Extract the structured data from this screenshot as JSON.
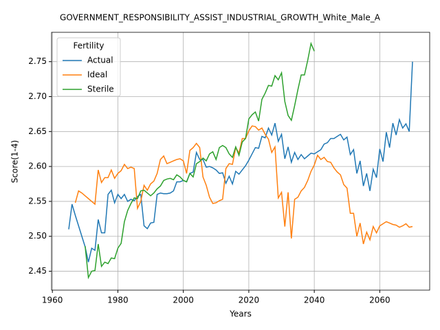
{
  "chart_data": {
    "type": "line",
    "title": "GOVERNMENT_RESPONSIBILITY_ASSIST_INDUSTRIAL_GROWTH_White_Male_A",
    "xlabel": "Years",
    "ylabel": "Score(1-4)",
    "legend_title": "Fertility",
    "legend": "upper left",
    "grid": true,
    "xlim": [
      1959.75,
      2075.25
    ],
    "ylim": [
      2.423,
      2.792
    ],
    "xticks": [
      1960,
      1980,
      2000,
      2020,
      2040,
      2060
    ],
    "yticks": [
      2.45,
      {
        "value": 2.5,
        "label": "2.50"
      },
      2.55,
      {
        "value": 2.6,
        "label": "2.60"
      },
      2.65,
      {
        "value": 2.7,
        "label": "2.70"
      },
      2.75
    ],
    "series": [
      {
        "name": "Actual",
        "color": "#1f77b4",
        "x": [
          1965,
          1966,
          1967,
          1968,
          1969,
          1970,
          1971,
          1972,
          1973,
          1974,
          1975,
          1976,
          1977,
          1978,
          1979,
          1980,
          1981,
          1982,
          1983,
          1984,
          1985,
          1986,
          1987,
          1988,
          1989,
          1990,
          1991,
          1992,
          1993,
          1994,
          1995,
          1996,
          1997,
          1998,
          1999,
          2000,
          2001,
          2002,
          2003,
          2004,
          2005,
          2006,
          2007,
          2008,
          2009,
          2010,
          2011,
          2012,
          2013,
          2014,
          2015,
          2016,
          2017,
          2018,
          2019,
          2020,
          2021,
          2022,
          2023,
          2024,
          2025,
          2026,
          2027,
          2028,
          2029,
          2030,
          2031,
          2032,
          2033,
          2034,
          2035,
          2036,
          2037,
          2038,
          2039,
          2040,
          2041,
          2042,
          2043,
          2044,
          2045,
          2046,
          2047,
          2048,
          2049,
          2050,
          2051,
          2052,
          2053,
          2054,
          2055,
          2056,
          2057,
          2058,
          2059,
          2060,
          2061,
          2062,
          2063,
          2064,
          2065,
          2066,
          2067,
          2068,
          2069,
          2070
        ],
        "values": [
          2.51,
          2.546,
          2.53,
          2.515,
          2.5,
          2.485,
          2.463,
          2.483,
          2.48,
          2.524,
          2.505,
          2.505,
          2.56,
          2.566,
          2.548,
          2.56,
          2.554,
          2.56,
          2.55,
          2.553,
          2.551,
          2.557,
          2.56,
          2.515,
          2.511,
          2.519,
          2.52,
          2.56,
          2.562,
          2.561,
          2.561,
          2.562,
          2.565,
          2.578,
          2.578,
          2.58,
          2.578,
          2.59,
          2.592,
          2.62,
          2.61,
          2.61,
          2.599,
          2.6,
          2.598,
          2.595,
          2.59,
          2.591,
          2.576,
          2.586,
          2.575,
          2.593,
          2.589,
          2.595,
          2.601,
          2.609,
          2.618,
          2.627,
          2.626,
          2.643,
          2.641,
          2.655,
          2.645,
          2.662,
          2.636,
          2.646,
          2.611,
          2.628,
          2.606,
          2.62,
          2.61,
          2.617,
          2.611,
          2.615,
          2.619,
          2.618,
          2.621,
          2.624,
          2.632,
          2.634,
          2.64,
          2.64,
          2.643,
          2.646,
          2.638,
          2.642,
          2.617,
          2.624,
          2.59,
          2.608,
          2.572,
          2.59,
          2.565,
          2.596,
          2.584,
          2.625,
          2.607,
          2.649,
          2.627,
          2.662,
          2.645,
          2.667,
          2.655,
          2.661,
          2.65,
          2.75
        ]
      },
      {
        "name": "Ideal",
        "color": "#ff7f0e",
        "x": [
          1967,
          1968,
          1969,
          1970,
          1971,
          1972,
          1973,
          1974,
          1975,
          1976,
          1977,
          1978,
          1979,
          1980,
          1981,
          1982,
          1983,
          1984,
          1985,
          1986,
          1987,
          1988,
          1989,
          1990,
          1991,
          1992,
          1993,
          1994,
          1995,
          1996,
          1997,
          1998,
          1999,
          2000,
          2001,
          2002,
          2003,
          2004,
          2005,
          2006,
          2007,
          2008,
          2009,
          2010,
          2011,
          2012,
          2013,
          2014,
          2015,
          2016,
          2017,
          2018,
          2019,
          2020,
          2021,
          2022,
          2023,
          2024,
          2025,
          2026,
          2027,
          2028,
          2029,
          2030,
          2031,
          2032,
          2033,
          2034,
          2035,
          2036,
          2037,
          2038,
          2039,
          2040,
          2041,
          2042,
          2043,
          2044,
          2045,
          2046,
          2047,
          2048,
          2049,
          2050,
          2051,
          2052,
          2053,
          2054,
          2055,
          2056,
          2057,
          2058,
          2059,
          2060,
          2061,
          2062,
          2063,
          2064,
          2065,
          2066,
          2067,
          2068,
          2069,
          2070
        ],
        "values": [
          2.548,
          2.565,
          2.562,
          2.558,
          2.554,
          2.55,
          2.546,
          2.595,
          2.577,
          2.584,
          2.584,
          2.595,
          2.583,
          2.59,
          2.594,
          2.603,
          2.597,
          2.599,
          2.597,
          2.54,
          2.55,
          2.573,
          2.566,
          2.575,
          2.579,
          2.59,
          2.61,
          2.615,
          2.604,
          2.606,
          2.608,
          2.61,
          2.611,
          2.608,
          2.59,
          2.623,
          2.627,
          2.633,
          2.627,
          2.585,
          2.573,
          2.556,
          2.547,
          2.548,
          2.551,
          2.553,
          2.597,
          2.604,
          2.603,
          2.627,
          2.619,
          2.64,
          2.64,
          2.651,
          2.658,
          2.657,
          2.652,
          2.655,
          2.646,
          2.639,
          2.62,
          2.628,
          2.555,
          2.563,
          2.514,
          2.563,
          2.497,
          2.553,
          2.556,
          2.565,
          2.57,
          2.58,
          2.593,
          2.602,
          2.616,
          2.61,
          2.613,
          2.607,
          2.606,
          2.598,
          2.592,
          2.588,
          2.574,
          2.569,
          2.533,
          2.533,
          2.5,
          2.519,
          2.489,
          2.506,
          2.495,
          2.514,
          2.505,
          2.515,
          2.518,
          2.521,
          2.519,
          2.517,
          2.516,
          2.513,
          2.515,
          2.518,
          2.513,
          2.514
        ]
      },
      {
        "name": "Sterile",
        "color": "#2ca02c",
        "x": [
          1970,
          1971,
          1972,
          1973,
          1974,
          1975,
          1976,
          1977,
          1978,
          1979,
          1980,
          1981,
          1982,
          1983,
          1984,
          1985,
          1986,
          1987,
          1988,
          1989,
          1990,
          1991,
          1992,
          1993,
          1994,
          1995,
          1996,
          1997,
          1998,
          1999,
          2000,
          2001,
          2002,
          2003,
          2004,
          2005,
          2006,
          2007,
          2008,
          2009,
          2010,
          2011,
          2012,
          2013,
          2014,
          2015,
          2016,
          2017,
          2018,
          2019,
          2020,
          2021,
          2022,
          2023,
          2024,
          2025,
          2026,
          2027,
          2028,
          2029,
          2030,
          2031,
          2032,
          2033,
          2034,
          2035,
          2036,
          2037,
          2038,
          2039,
          2040
        ],
        "values": [
          2.486,
          2.441,
          2.45,
          2.451,
          2.489,
          2.457,
          2.463,
          2.461,
          2.469,
          2.468,
          2.483,
          2.49,
          2.521,
          2.537,
          2.547,
          2.555,
          2.554,
          2.565,
          2.566,
          2.562,
          2.558,
          2.562,
          2.568,
          2.572,
          2.58,
          2.582,
          2.583,
          2.581,
          2.588,
          2.585,
          2.58,
          2.578,
          2.59,
          2.585,
          2.604,
          2.607,
          2.612,
          2.608,
          2.618,
          2.621,
          2.61,
          2.627,
          2.63,
          2.627,
          2.618,
          2.613,
          2.628,
          2.616,
          2.635,
          2.64,
          2.668,
          2.674,
          2.678,
          2.665,
          2.696,
          2.705,
          2.716,
          2.715,
          2.73,
          2.724,
          2.734,
          2.693,
          2.673,
          2.666,
          2.687,
          2.71,
          2.731,
          2.731,
          2.752,
          2.776,
          2.765
        ]
      }
    ]
  }
}
